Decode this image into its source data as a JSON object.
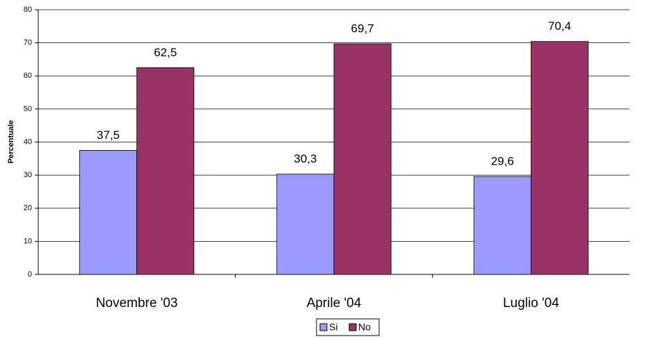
{
  "chart_data": {
    "type": "bar",
    "y_label": "Percentuale",
    "categories": [
      "Novembre '03",
      "Aprile '04",
      "Luglio '04"
    ],
    "series": [
      {
        "name": "Si",
        "color": "#9999ff",
        "values": [
          37.5,
          30.3,
          29.6
        ],
        "value_labels": [
          "37,5",
          "30,3",
          "29,6"
        ]
      },
      {
        "name": "No",
        "color": "#993366",
        "values": [
          62.5,
          69.7,
          70.4
        ],
        "value_labels": [
          "62,5",
          "69,7",
          "70,4"
        ]
      }
    ],
    "ylim": [
      0,
      80
    ],
    "yticks": [
      0,
      10,
      20,
      30,
      40,
      50,
      60,
      70,
      80
    ],
    "grid": true,
    "legend": "bottom"
  }
}
